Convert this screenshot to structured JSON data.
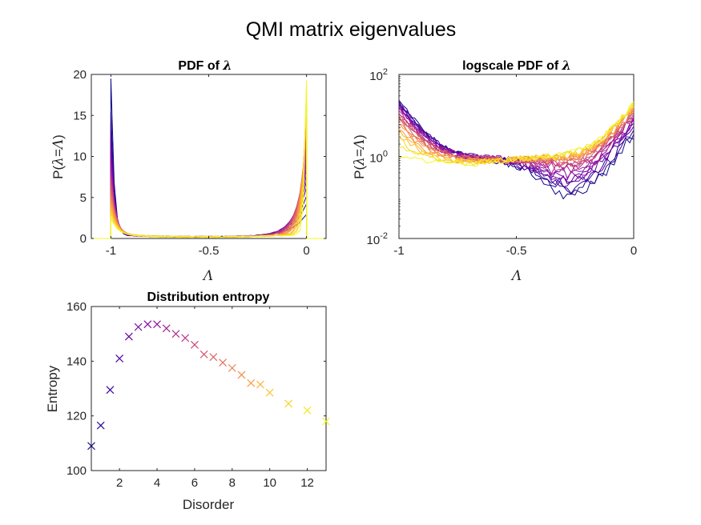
{
  "figure": {
    "title": "QMI matrix eigenvalues"
  },
  "colormap": [
    "#0d0887",
    "#5302a3",
    "#8b0aa5",
    "#b83289",
    "#db5c68",
    "#f48849",
    "#febd2a",
    "#f0f921"
  ],
  "chart_data": [
    {
      "id": "pdf",
      "type": "line",
      "title": "PDF of λ",
      "xlabel": "Λ",
      "ylabel": "P(λ=Λ)",
      "xlim": [
        -1.1,
        0.1
      ],
      "ylim": [
        0,
        20
      ],
      "xticks": [
        -1,
        -0.5,
        0
      ],
      "xtick_labels": [
        "-1",
        "-0.5",
        "0"
      ],
      "yticks": [
        0,
        5,
        10,
        15,
        20
      ],
      "ytick_labels": [
        "0",
        "5",
        "10",
        "15",
        "20"
      ],
      "series_count": 24,
      "color_order": "dark purple (low disorder) to yellow (high disorder)",
      "peak_at_minus_1": {
        "first": 19.2,
        "last": 2.0
      },
      "peak_at_0": {
        "first": 2.5,
        "last": 18.8
      },
      "grid": false
    },
    {
      "id": "logpdf",
      "type": "line",
      "title": "logscale PDF of λ",
      "xlabel": "Λ",
      "ylabel": "P(λ=Λ)",
      "yscale": "log",
      "xlim": [
        -1,
        0
      ],
      "ylim": [
        0.01,
        100
      ],
      "xticks": [
        -1,
        -0.5,
        0
      ],
      "xtick_labels": [
        "-1",
        "-0.5",
        "0"
      ],
      "yticks": [
        0.01,
        1,
        100
      ],
      "ytick_labels": [
        {
          "base": "10",
          "exp": "-2"
        },
        {
          "base": "10",
          "exp": "0"
        },
        {
          "base": "10",
          "exp": "2"
        }
      ],
      "series_count": 24,
      "grid": false
    },
    {
      "id": "entropy",
      "type": "scatter",
      "title": "Distribution entropy",
      "xlabel": "Disorder",
      "ylabel": "Entropy",
      "xlim": [
        0.5,
        13
      ],
      "ylim": [
        100,
        160
      ],
      "xticks": [
        2,
        4,
        6,
        8,
        10,
        12
      ],
      "xtick_labels": [
        "2",
        "4",
        "6",
        "8",
        "10",
        "12"
      ],
      "yticks": [
        100,
        120,
        140,
        160
      ],
      "ytick_labels": [
        "100",
        "120",
        "140",
        "160"
      ],
      "marker": "x",
      "x": [
        0.5,
        1,
        1.5,
        2,
        2.5,
        3,
        3.5,
        4,
        4.5,
        5,
        5.5,
        6,
        6.5,
        7,
        7.5,
        8,
        8.5,
        9,
        9.5,
        10,
        11,
        12,
        13
      ],
      "y": [
        109,
        116.5,
        129.5,
        141,
        149,
        152.5,
        153.5,
        153.5,
        152,
        150,
        148.5,
        146,
        142.5,
        141.5,
        139.5,
        137.5,
        135,
        132,
        131.5,
        128.5,
        124.5,
        122,
        118
      ],
      "grid": false
    }
  ]
}
